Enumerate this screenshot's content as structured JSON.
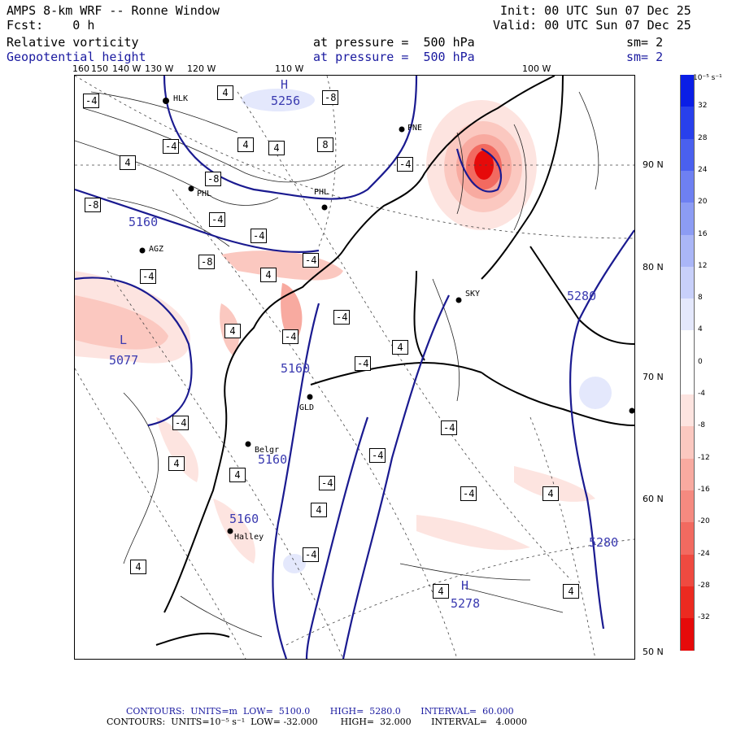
{
  "header": {
    "model": "AMPS 8-km WRF -- Ronne Window",
    "init": "Init: 00 UTC Sun 07 Dec 25",
    "fcst": "Fcst:    0 h",
    "valid": "Valid: 00 UTC Sun 07 Dec 25",
    "field1": {
      "name": "Relative vorticity",
      "level": "at pressure =  500 hPa",
      "smooth": "sm= 2"
    },
    "field2": {
      "name": "Geopotential height",
      "level": "at pressure =  500 hPa",
      "smooth": "sm= 2"
    }
  },
  "lon_labels": [
    "160",
    "150",
    "140 W",
    "130 W",
    "120 W",
    "110 W",
    "100 W"
  ],
  "lat_labels": [
    "90 N",
    "80 N",
    "70 N",
    "60 N",
    "50 N"
  ],
  "stations": [
    "HLK",
    "PNE",
    "PHL",
    "PHL",
    "AGZ",
    "SKY",
    "GLD",
    "Belgr",
    "Halley"
  ],
  "height_labels": [
    "H",
    "5256",
    "5160",
    "L",
    "5077",
    "5160",
    "5160",
    "5160",
    "5280",
    "5280",
    "H",
    "5278"
  ],
  "vort_labels": [
    "-4",
    "4",
    "-8",
    "-4",
    "4",
    "4",
    "8",
    "-4",
    "4",
    "-8",
    "-8",
    "-4",
    "-4",
    "-8",
    "-4",
    "4",
    "-4",
    "-4",
    "4",
    "-4",
    "-4",
    "4",
    "-4",
    "-4",
    "4",
    "4",
    "-4",
    "-4",
    "-4",
    "4",
    "4",
    "-4",
    "4",
    "4",
    "4"
  ],
  "colorbar": {
    "unit": "10⁻⁵ s⁻¹",
    "labels": [
      "32",
      "28",
      "24",
      "20",
      "16",
      "12",
      "8",
      "4",
      "0",
      "-4",
      "-8",
      "-12",
      "-16",
      "-20",
      "-24",
      "-28",
      "-32"
    ],
    "colors": [
      "#0a1ee6",
      "#2840ec",
      "#4a60ef",
      "#6e80f2",
      "#8c9cf4",
      "#aab6f7",
      "#c8d0fa",
      "#e4e8fc",
      "#ffffff",
      "#ffffff",
      "#fde4e0",
      "#fbc8c0",
      "#f8aaa0",
      "#f58a80",
      "#f26a60",
      "#ef4a40",
      "#ec2a20",
      "#e60a0a"
    ]
  },
  "footer": {
    "line1": "CONTOURS:  UNITS=m  LOW=  5100.0       HIGH=  5280.0       INTERVAL=  60.000",
    "line2": "CONTOURS:  UNITS=10⁻⁵ s⁻¹  LOW= -32.000        HIGH=  32.000       INTERVAL=   4.0000"
  }
}
